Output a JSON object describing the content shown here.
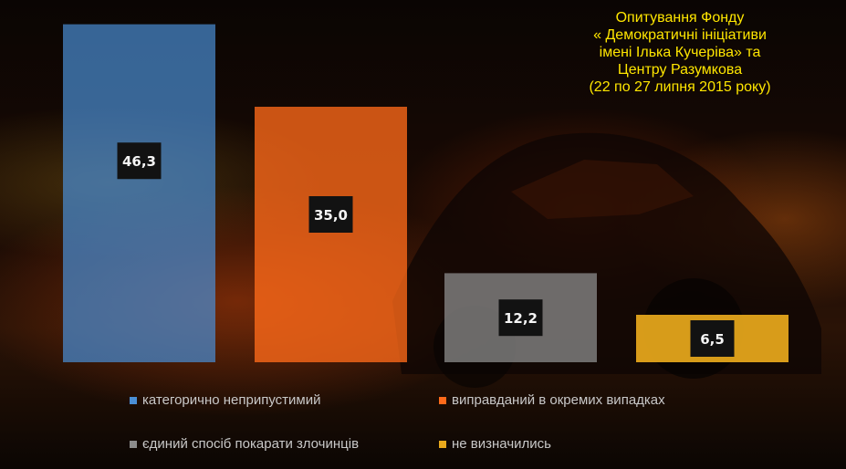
{
  "title_lines": [
    "Опитування Фонду",
    "« Демократичні ініціативи",
    "імені Ілька Кучеріва» та",
    "Центру Разумкова",
    "(22 по 27 липня 2015 року)"
  ],
  "colors": {
    "title": "#ffe600",
    "label_bg": "#121212",
    "label_text": "#f5f5f5",
    "legend_text": "#c8c8c8"
  },
  "chart_data": {
    "type": "bar",
    "title": "Опитування Фонду « Демократичні ініціативи імені Ілька Кучеріва» та Центру Разумкова (22 по 27 липня 2015 року)",
    "series": [
      {
        "name": "категорично неприпустимий",
        "value": 46.3,
        "label": "46,3",
        "color": "#4a8fd6"
      },
      {
        "name": "виправданий в окремих випадках",
        "value": 35.0,
        "label": "35,0",
        "color": "#ff6a1a"
      },
      {
        "name": "єдиний  спосіб покарати злочинців",
        "value": 12.2,
        "label": "12,2",
        "color": "#8c8c8c"
      },
      {
        "name": "не визначились",
        "value": 6.5,
        "label": "6,5",
        "color": "#e9a91c"
      }
    ],
    "ylim": [
      0,
      50
    ],
    "grid": false,
    "legend_position": "bottom"
  }
}
